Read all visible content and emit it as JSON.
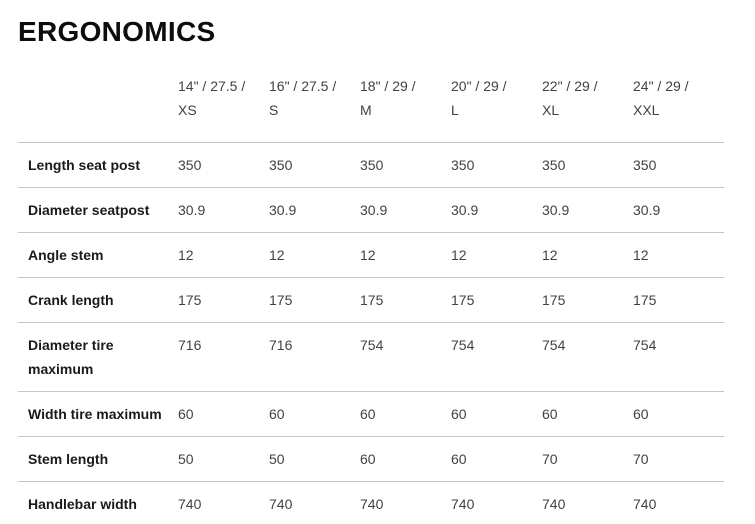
{
  "page": {
    "title": "ERGONOMICS"
  },
  "colors": {
    "background": "#ffffff",
    "title_text": "#0d0d0d",
    "header_text": "#424242",
    "row_label_text": "#1a1a1a",
    "value_text": "#424242",
    "divider": "#c6c6c6"
  },
  "table": {
    "columns": [
      {
        "dims": "14\" / 27.5 /",
        "size": "XS"
      },
      {
        "dims": "16\" / 27.5 /",
        "size": "S"
      },
      {
        "dims": "18\" / 29 /",
        "size": "M"
      },
      {
        "dims": "20\" / 29 /",
        "size": "L"
      },
      {
        "dims": "22\" / 29 /",
        "size": "XL"
      },
      {
        "dims": "24\" / 29 /",
        "size": "XXL"
      }
    ],
    "rows": [
      {
        "label": "Length seat post",
        "values": [
          "350",
          "350",
          "350",
          "350",
          "350",
          "350"
        ]
      },
      {
        "label": "Diameter seatpost",
        "values": [
          "30.9",
          "30.9",
          "30.9",
          "30.9",
          "30.9",
          "30.9"
        ]
      },
      {
        "label": "Angle stem",
        "values": [
          "12",
          "12",
          "12",
          "12",
          "12",
          "12"
        ]
      },
      {
        "label": "Crank length",
        "values": [
          "175",
          "175",
          "175",
          "175",
          "175",
          "175"
        ]
      },
      {
        "label": "Diameter tire maximum",
        "values": [
          "716",
          "716",
          "754",
          "754",
          "754",
          "754"
        ]
      },
      {
        "label": "Width tire maximum",
        "values": [
          "60",
          "60",
          "60",
          "60",
          "60",
          "60"
        ]
      },
      {
        "label": "Stem length",
        "values": [
          "50",
          "50",
          "60",
          "60",
          "70",
          "70"
        ]
      },
      {
        "label": "Handlebar width",
        "values": [
          "740",
          "740",
          "740",
          "740",
          "740",
          "740"
        ]
      }
    ]
  }
}
